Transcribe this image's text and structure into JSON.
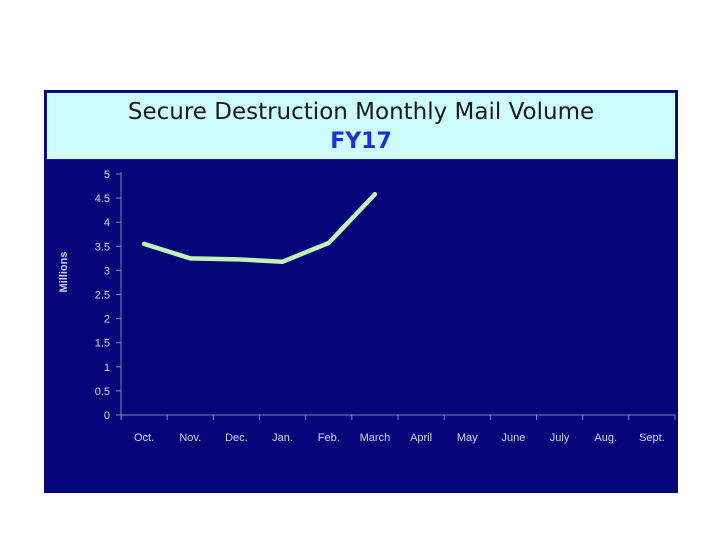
{
  "chart_data": {
    "type": "line",
    "title": "Secure Destruction Monthly Mail Volume",
    "subtitle": "FY17",
    "ylabel": "Millions",
    "xlabel": "",
    "ylim": [
      0,
      5
    ],
    "yticks": [
      "0",
      "0.5",
      "1",
      "1.5",
      "2",
      "2.5",
      "3",
      "3.5",
      "4",
      "4.5",
      "5"
    ],
    "categories": [
      "Oct.",
      "Nov.",
      "Dec.",
      "Jan.",
      "Feb.",
      "March",
      "April",
      "May",
      "June",
      "July",
      "Aug.",
      "Sept."
    ],
    "series": [
      {
        "values": [
          3.55,
          3.25,
          3.23,
          3.18,
          3.57,
          4.58,
          null,
          null,
          null,
          null,
          null,
          null
        ]
      }
    ],
    "grid": false,
    "legend": "none"
  },
  "colors": {
    "background": "#06067a",
    "title_box": "#ccfcfc",
    "subtitle": "#1e2fd6",
    "line": "#c2f5b4",
    "axis": "#8080b8",
    "tick_text": "#d2d2f0"
  }
}
